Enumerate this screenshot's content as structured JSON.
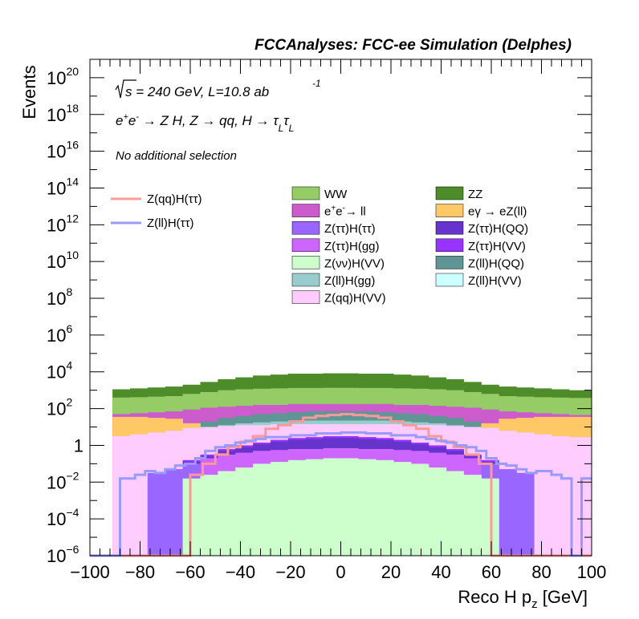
{
  "chart_data": {
    "type": "area",
    "title": "FCCAnalyses: FCC-ee Simulation (Delphes)",
    "xlabel_main": "Reco H p",
    "xlabel_sub": "z",
    "xlabel_unit": " [GeV]",
    "ylabel": "Events",
    "xlim": [
      -100,
      100
    ],
    "ylim_log10": [
      -6,
      21
    ],
    "y_scale": "log",
    "x_ticks": [
      "-100",
      "-80",
      "-60",
      "-40",
      "-20",
      "0",
      "20",
      "40",
      "60",
      "80",
      "100"
    ],
    "x_tick_values": [
      -100,
      -80,
      -60,
      -40,
      -20,
      0,
      20,
      40,
      60,
      80,
      100
    ],
    "y_ticks": [
      {
        "exp": -6,
        "base": "10",
        "sup": "-6"
      },
      {
        "exp": -4,
        "base": "10",
        "sup": "-4"
      },
      {
        "exp": -2,
        "base": "10",
        "sup": "-2"
      },
      {
        "exp": 0,
        "base": "1",
        "sup": ""
      },
      {
        "exp": 2,
        "base": "10",
        "sup": "2"
      },
      {
        "exp": 4,
        "base": "10",
        "sup": "4"
      },
      {
        "exp": 6,
        "base": "10",
        "sup": "6"
      },
      {
        "exp": 8,
        "base": "10",
        "sup": "8"
      },
      {
        "exp": 10,
        "base": "10",
        "sup": "10"
      },
      {
        "exp": 12,
        "base": "10",
        "sup": "12"
      },
      {
        "exp": 14,
        "base": "10",
        "sup": "14"
      },
      {
        "exp": 16,
        "base": "10",
        "sup": "16"
      },
      {
        "exp": 18,
        "base": "10",
        "sup": "18"
      },
      {
        "exp": 20,
        "base": "10",
        "sup": "20"
      }
    ],
    "annotations": {
      "line1_a": "s = 240 GeV, L=10.8 ab",
      "line1_sup": "-1",
      "line2_a": "e",
      "line2_b": "e",
      "line2_c": " → Z H, Z  → qq, H  → τ",
      "line2_d": "L",
      "line2_e": "τ",
      "line2_f": "L",
      "line3": "No additional selection"
    },
    "stack_layers": [
      {
        "name": "Z(ll)H(VV)",
        "color": "#ccffff",
        "log10": [
          -6,
          -6,
          -6,
          -6,
          -1.1,
          -1.0,
          -0.9,
          -0.7,
          -0.55,
          -0.45,
          -0.35,
          -0.25,
          -0.2,
          -0.2,
          -0.25,
          -0.35,
          -0.45,
          -0.55,
          -0.7,
          -0.9,
          -1.0,
          -1.1,
          -6,
          -6,
          -6,
          -6,
          -6,
          -6
        ]
      },
      {
        "name": "ZZ",
        "color": "#4e8c2a",
        "log10": [
          3.05,
          3.1,
          3.15,
          3.2,
          3.3,
          3.45,
          3.6,
          3.7,
          3.8,
          3.85,
          3.9,
          3.9,
          3.92,
          3.92,
          3.9,
          3.9,
          3.85,
          3.8,
          3.7,
          3.6,
          3.45,
          3.3,
          3.2,
          3.15,
          3.1,
          3.05,
          3.0,
          3.0
        ]
      },
      {
        "name": "WW",
        "color": "#95cc66",
        "log10": [
          2.6,
          2.62,
          2.65,
          2.68,
          2.8,
          2.9,
          3.0,
          3.05,
          3.08,
          3.1,
          3.12,
          3.12,
          3.13,
          3.13,
          3.12,
          3.12,
          3.1,
          3.08,
          3.05,
          3.0,
          2.9,
          2.8,
          2.68,
          2.65,
          2.62,
          2.6,
          2.58,
          2.58
        ]
      },
      {
        "name": "e+e- → ll",
        "color": "#cc5ccc",
        "log10": [
          1.7,
          1.75,
          1.8,
          1.85,
          1.95,
          2.05,
          2.1,
          2.15,
          2.2,
          2.2,
          2.25,
          2.25,
          2.25,
          2.25,
          2.25,
          2.25,
          2.2,
          2.2,
          2.15,
          2.1,
          2.05,
          1.95,
          1.85,
          1.8,
          1.75,
          1.7,
          1.65,
          1.65
        ]
      },
      {
        "name": "Z(ll)H(QQ)",
        "color": "#5f9595",
        "log10": [
          -6,
          -6,
          -6,
          -6,
          1.1,
          1.3,
          1.5,
          1.6,
          1.7,
          1.75,
          1.8,
          1.85,
          1.85,
          1.85,
          1.85,
          1.8,
          1.75,
          1.7,
          1.6,
          1.5,
          1.3,
          1.1,
          -6,
          -6,
          -6,
          -6,
          -6,
          -6
        ]
      },
      {
        "name": "eγ → eZ(ll)",
        "color": "#fdc865",
        "log10": [
          1.55,
          1.55,
          1.5,
          1.45,
          1.2,
          1.0,
          0.8,
          0.65,
          0.5,
          0.4,
          0.3,
          0.25,
          0.2,
          0.2,
          0.25,
          0.3,
          0.4,
          0.5,
          0.65,
          0.8,
          1.0,
          1.2,
          1.45,
          1.5,
          1.55,
          1.55,
          1.55,
          1.55
        ]
      },
      {
        "name": "Z(ll)H(gg)",
        "color": "#99cccc",
        "log10": [
          -6,
          -6,
          -6,
          -6,
          0.9,
          1.0,
          1.1,
          1.2,
          1.25,
          1.3,
          1.35,
          1.35,
          1.35,
          1.35,
          1.35,
          1.35,
          1.3,
          1.25,
          1.2,
          1.1,
          1.0,
          0.9,
          -6,
          -6,
          -6,
          -6,
          -6,
          -6
        ]
      },
      {
        "name": "Z(qq)H(VV)",
        "color": "#ffccff",
        "log10": [
          0.5,
          0.6,
          0.7,
          0.8,
          0.95,
          1.0,
          1.05,
          1.1,
          1.1,
          1.15,
          1.15,
          1.15,
          1.15,
          1.15,
          1.15,
          1.15,
          1.15,
          1.1,
          1.1,
          1.05,
          1.0,
          0.95,
          0.8,
          0.7,
          0.6,
          0.5,
          0.45,
          0.45
        ]
      },
      {
        "name": "Z(ττ)H(VV)",
        "color": "#9933ff",
        "log10": [
          -6,
          -6,
          -6,
          -1.3,
          -0.8,
          -0.5,
          -0.2,
          0.0,
          0.15,
          0.3,
          0.4,
          0.45,
          0.5,
          0.5,
          0.45,
          0.4,
          0.3,
          0.15,
          0.0,
          -0.2,
          -0.5,
          -0.8,
          -1.3,
          -6,
          -6,
          -6,
          -6,
          -6
        ]
      },
      {
        "name": "Z(ττ)H(QQ)",
        "color": "#6633cc",
        "log10": [
          -6,
          -6,
          -6,
          -1.4,
          -0.9,
          -0.6,
          -0.3,
          -0.1,
          0.05,
          0.2,
          0.3,
          0.35,
          0.4,
          0.4,
          0.35,
          0.3,
          0.2,
          0.05,
          -0.1,
          -0.3,
          -0.6,
          -0.9,
          -1.4,
          -6,
          -6,
          -6,
          -6,
          -6
        ]
      },
      {
        "name": "Z(ττ)H(gg)",
        "color": "#cc66ff",
        "log10": [
          -6,
          -6,
          -1.9,
          -1.6,
          -1.0,
          -0.7,
          -0.5,
          -0.4,
          -0.3,
          -0.25,
          -0.2,
          -0.2,
          -0.15,
          -0.15,
          -0.2,
          -0.2,
          -0.25,
          -0.3,
          -0.4,
          -0.5,
          -0.7,
          -1.0,
          -1.6,
          -1.9,
          -6,
          -6,
          -6,
          -6
        ]
      },
      {
        "name": "Z(ττ)H(ττ)",
        "color": "#9966ff",
        "log10": [
          -6,
          -6,
          -1.5,
          -1.3,
          -1.0,
          -1.6,
          -1.5,
          -1.3,
          -1.0,
          -0.9,
          -0.8,
          -0.75,
          -0.7,
          -0.7,
          -0.75,
          -0.8,
          -0.9,
          -1.0,
          -1.3,
          -1.5,
          -1.6,
          -1.0,
          -1.3,
          -1.5,
          -6,
          -6,
          -6,
          -6
        ]
      },
      {
        "name": "Z(νν)H(VV)",
        "color": "#ccffcc",
        "log10": [
          -6,
          -6,
          -6,
          -6,
          -1.8,
          -1.6,
          -1.4,
          -1.2,
          -1.0,
          -0.9,
          -0.8,
          -0.75,
          -0.7,
          -0.7,
          -0.75,
          -0.8,
          -0.9,
          -1.0,
          -1.2,
          -1.4,
          -1.6,
          -1.8,
          -6,
          -6,
          -6,
          -6,
          -6,
          -6
        ]
      }
    ],
    "stack_edges": [
      -91,
      -84,
      -77,
      -70,
      -63,
      -56,
      -49,
      -42,
      -35,
      -28,
      -21,
      -14,
      -7,
      0,
      7,
      14,
      21,
      28,
      35,
      42,
      49,
      56,
      63,
      70,
      77,
      84,
      91,
      98,
      100
    ],
    "overlays": [
      {
        "name": "Z(qq)H(ττ)",
        "color": "#ff9999",
        "x": [
          -100,
          -60,
          -60,
          -55,
          -50,
          -45,
          -40,
          -35,
          -30,
          -25,
          -20,
          -15,
          -10,
          -5,
          0,
          5,
          10,
          15,
          20,
          25,
          30,
          35,
          40,
          45,
          50,
          55,
          60,
          60,
          100
        ],
        "log10": [
          -6,
          -6,
          -1.6,
          -1.0,
          -0.5,
          -0.1,
          0.2,
          0.5,
          0.9,
          1.1,
          1.3,
          1.5,
          1.6,
          1.65,
          1.7,
          1.65,
          1.6,
          1.5,
          1.3,
          1.1,
          0.9,
          0.5,
          0.2,
          -0.1,
          -0.5,
          -1.0,
          -1.6,
          -6,
          -6
        ]
      },
      {
        "name": "Z(ll)H(ττ)",
        "color": "#9999ff",
        "x": [
          -100,
          -88,
          -88,
          -82,
          -78,
          -74,
          -70,
          -66,
          -62,
          -58,
          -54,
          -50,
          -46,
          -42,
          -38,
          -34,
          -30,
          -20,
          -10,
          0,
          10,
          20,
          30,
          34,
          38,
          42,
          46,
          50,
          54,
          58,
          62,
          66,
          70,
          74,
          78,
          84,
          88,
          92,
          92,
          96,
          100
        ],
        "log10": [
          -6,
          -6,
          -1.8,
          -1.6,
          -1.4,
          -1.5,
          -1.3,
          -1.1,
          -1.0,
          -0.7,
          -0.3,
          -0.1,
          0.0,
          0.15,
          0.25,
          0.35,
          0.45,
          0.55,
          0.65,
          0.7,
          0.65,
          0.55,
          0.45,
          0.35,
          0.25,
          0.15,
          0.0,
          -0.1,
          -0.3,
          -0.7,
          -1.0,
          -1.1,
          -1.3,
          -1.5,
          -1.4,
          -1.6,
          -1.8,
          -1.8,
          -6,
          -1.8,
          -6
        ]
      }
    ],
    "legend": {
      "left": [
        "Z(qq)H(ττ)",
        "Z(ll)H(ττ)"
      ],
      "col1": [
        "WW",
        "e+e-→ ll",
        "Z(ττ)H(ττ)",
        "Z(ττ)H(gg)",
        "Z(νν)H(VV)",
        "Z(ll)H(gg)",
        "Z(qq)H(VV)"
      ],
      "col2": [
        "ZZ",
        "eγ → eZ(ll)",
        "Z(ττ)H(QQ)",
        "Z(ττ)H(VV)",
        "Z(ll)H(QQ)",
        "Z(ll)H(VV)"
      ],
      "col1_colors": [
        "#95cc66",
        "#cc5ccc",
        "#9966ff",
        "#cc66ff",
        "#ccffcc",
        "#99cccc",
        "#ffccff"
      ],
      "col2_colors": [
        "#4e8c2a",
        "#fdc865",
        "#6633cc",
        "#9933ff",
        "#5f9595",
        "#ccffff"
      ],
      "left_colors": [
        "#ff9999",
        "#9999ff"
      ]
    }
  }
}
